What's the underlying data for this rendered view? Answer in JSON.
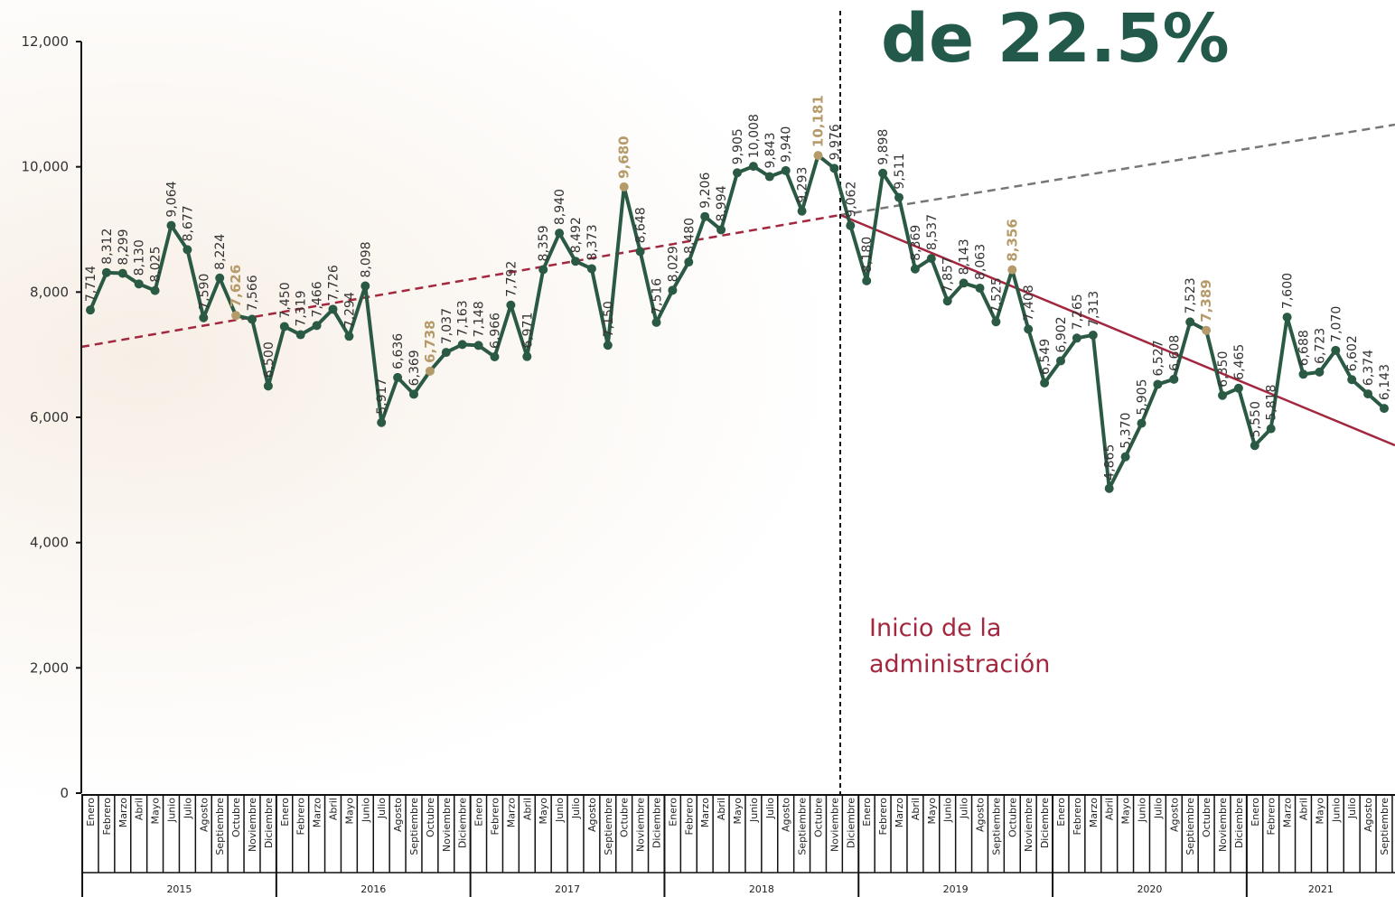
{
  "chart_data": {
    "type": "line",
    "title": "de 22.5%",
    "annotation": "Inicio de la administración",
    "categories": [
      "Enero",
      "Febrero",
      "Marzo",
      "Abril",
      "Mayo",
      "Junio",
      "Julio",
      "Agosto",
      "Septiembre",
      "Octubre",
      "Noviembre",
      "Diciembre",
      "Enero",
      "Febrero",
      "Marzo",
      "Abril",
      "Mayo",
      "Junio",
      "Julio",
      "Agosto",
      "Septiembre",
      "Octubre",
      "Noviembre",
      "Diciembre",
      "Enero",
      "Febrero",
      "Marzo",
      "Abril",
      "Mayo",
      "Junio",
      "Julio",
      "Agosto",
      "Septiembre",
      "Octubre",
      "Noviembre",
      "Diciembre",
      "Enero",
      "Febrero",
      "Marzo",
      "Abril",
      "Mayo",
      "Junio",
      "Julio",
      "Agosto",
      "Septiembre",
      "Octubre",
      "Noviembre",
      "Diciembre",
      "Enero",
      "Febrero",
      "Marzo",
      "Abril",
      "Mayo",
      "Junio",
      "Julio",
      "Agosto",
      "Septiembre",
      "Octubre",
      "Noviembre",
      "Diciembre",
      "Enero",
      "Febrero",
      "Marzo",
      "Abril",
      "Mayo",
      "Junio",
      "Julio",
      "Agosto",
      "Septiembre",
      "Octubre",
      "Noviembre",
      "Diciembre",
      "Enero",
      "Febrero",
      "Marzo",
      "Abril",
      "Mayo",
      "Junio",
      "Julio",
      "Agosto",
      "Septiembre"
    ],
    "years": [
      "2015",
      "2016",
      "2017",
      "2018",
      "2019",
      "2020",
      "2021"
    ],
    "series": [
      {
        "color": "#2b5a44",
        "values": [
          7714,
          8312,
          8299,
          8130,
          8025,
          9064,
          8677,
          7590,
          8224,
          7626,
          7566,
          6500,
          7450,
          7319,
          7466,
          7726,
          7294,
          8098,
          5917,
          6636,
          6369,
          6738,
          7037,
          7163,
          7148,
          6966,
          7792,
          6971,
          8359,
          8940,
          8492,
          8373,
          7150,
          9680,
          8648,
          7516,
          8029,
          8480,
          9206,
          8994,
          9905,
          10008,
          9843,
          9940,
          9293,
          10181,
          9976,
          9062,
          8180,
          9898,
          9511,
          8369,
          8537,
          7857,
          8143,
          8063,
          7525,
          8356,
          7408,
          6549,
          6902,
          7265,
          7313,
          4865,
          5370,
          5905,
          6527,
          6608,
          7523,
          7389,
          6350,
          6465,
          5550,
          5818,
          7600,
          6688,
          6723,
          7070,
          6602,
          6374,
          6143
        ],
        "value_labels": [
          "7,714",
          "8,312",
          "8,299",
          "8,130",
          "8,025",
          "9,064",
          "8,677",
          "7,590",
          "8,224",
          "7,626",
          "7,566",
          "6,500",
          "7,450",
          "7,319",
          "7,466",
          "7,726",
          "7,294",
          "8,098",
          "5,917",
          "6,636",
          "6,369",
          "6,738",
          "7,037",
          "7,163",
          "7,148",
          "6,966",
          "7,792",
          "6,971",
          "8,359",
          "8,940",
          "8,492",
          "8,373",
          "7,150",
          "9,680",
          "8,648",
          "7,516",
          "8,029",
          "8,480",
          "9,206",
          "8,994",
          "9,905",
          "10,008",
          "9,843",
          "9,940",
          "9,293",
          "10,181",
          "9,976",
          "9,062",
          "8,180",
          "9,898",
          "9,511",
          "8,369",
          "8,537",
          "7,857",
          "8,143",
          "8,063",
          "7,525",
          "8,356",
          "7,408",
          "6,549",
          "6,902",
          "7,265",
          "7,313",
          "4,865",
          "5,370",
          "5,905",
          "6,527",
          "6,608",
          "7,523",
          "7,389",
          "6,350",
          "6,465",
          "5,550",
          "5,818",
          "7,600",
          "6,688",
          "6,723",
          "7,070",
          "6,602",
          "6,374",
          "6,143"
        ]
      }
    ],
    "highlight_points": [
      9,
      21,
      33,
      45,
      57,
      69
    ],
    "highlight_color": "#b59a6a",
    "ylim": [
      0,
      12000
    ],
    "yticks": [
      0,
      {
        "value": 2000,
        "label": "2,000"
      },
      {
        "value": 4000,
        "label": "4,000"
      },
      {
        "value": 6000,
        "label": "6,000"
      },
      {
        "value": 8000,
        "label": "8,000"
      },
      {
        "value": 10000,
        "label": "10,000"
      },
      {
        "value": 12000,
        "label": "12,000"
      }
    ]
  }
}
